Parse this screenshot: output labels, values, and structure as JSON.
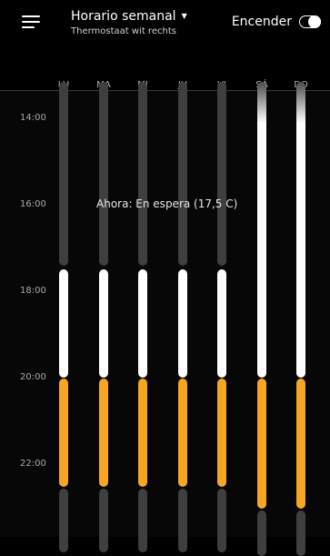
{
  "header": {
    "title": "Horario semanal",
    "subtitle": "Thermostaat  wit rechts",
    "power_label": "Encender",
    "power_on": true
  },
  "days": [
    "LU",
    "MA",
    "MI",
    "JU",
    "VI",
    "SÁ",
    "DO"
  ],
  "time_labels": [
    "14:00",
    "16:00",
    "18:00",
    "20:00",
    "22:00"
  ],
  "status": {
    "now_text": "Ahora: En espera (17,5 C)"
  },
  "colors": {
    "background": "#000000",
    "standby": "#3f3f3f",
    "comfort": "#ffffff",
    "heat": "#f5a623"
  }
}
